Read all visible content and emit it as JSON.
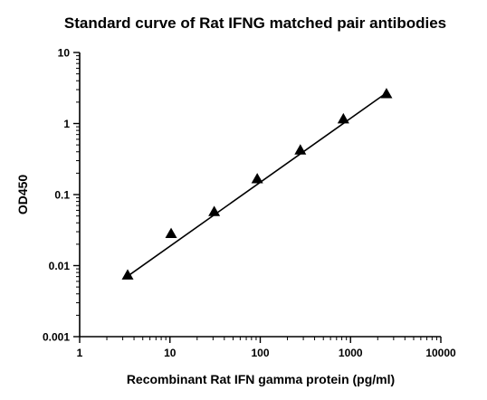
{
  "chart_data": {
    "type": "scatter",
    "title": "Standard curve of Rat IFNG matched pair antibodies",
    "xlabel": "Recombinant Rat IFN gamma protein (pg/ml)",
    "ylabel": "OD450",
    "x_scale": "log",
    "y_scale": "log",
    "xlim": [
      1,
      10000
    ],
    "ylim": [
      0.001,
      10
    ],
    "x_ticks": [
      1,
      10,
      100,
      1000,
      10000
    ],
    "x_tick_labels": [
      "1",
      "10",
      "100",
      "1000",
      "10000"
    ],
    "y_ticks": [
      0.001,
      0.01,
      0.1,
      1,
      10
    ],
    "y_tick_labels": [
      "0.001",
      "0.01",
      "0.1",
      "1",
      "10"
    ],
    "grid": false,
    "marker": "triangle",
    "series": [
      {
        "x": [
          3.4,
          10.3,
          30.9,
          92.6,
          278,
          833,
          2500
        ],
        "y": [
          0.0073,
          0.028,
          0.057,
          0.165,
          0.42,
          1.15,
          2.6
        ]
      }
    ],
    "fit_line": {
      "x": [
        3.4,
        2500
      ],
      "y": [
        0.0071,
        2.7
      ]
    },
    "color": "#000000"
  }
}
